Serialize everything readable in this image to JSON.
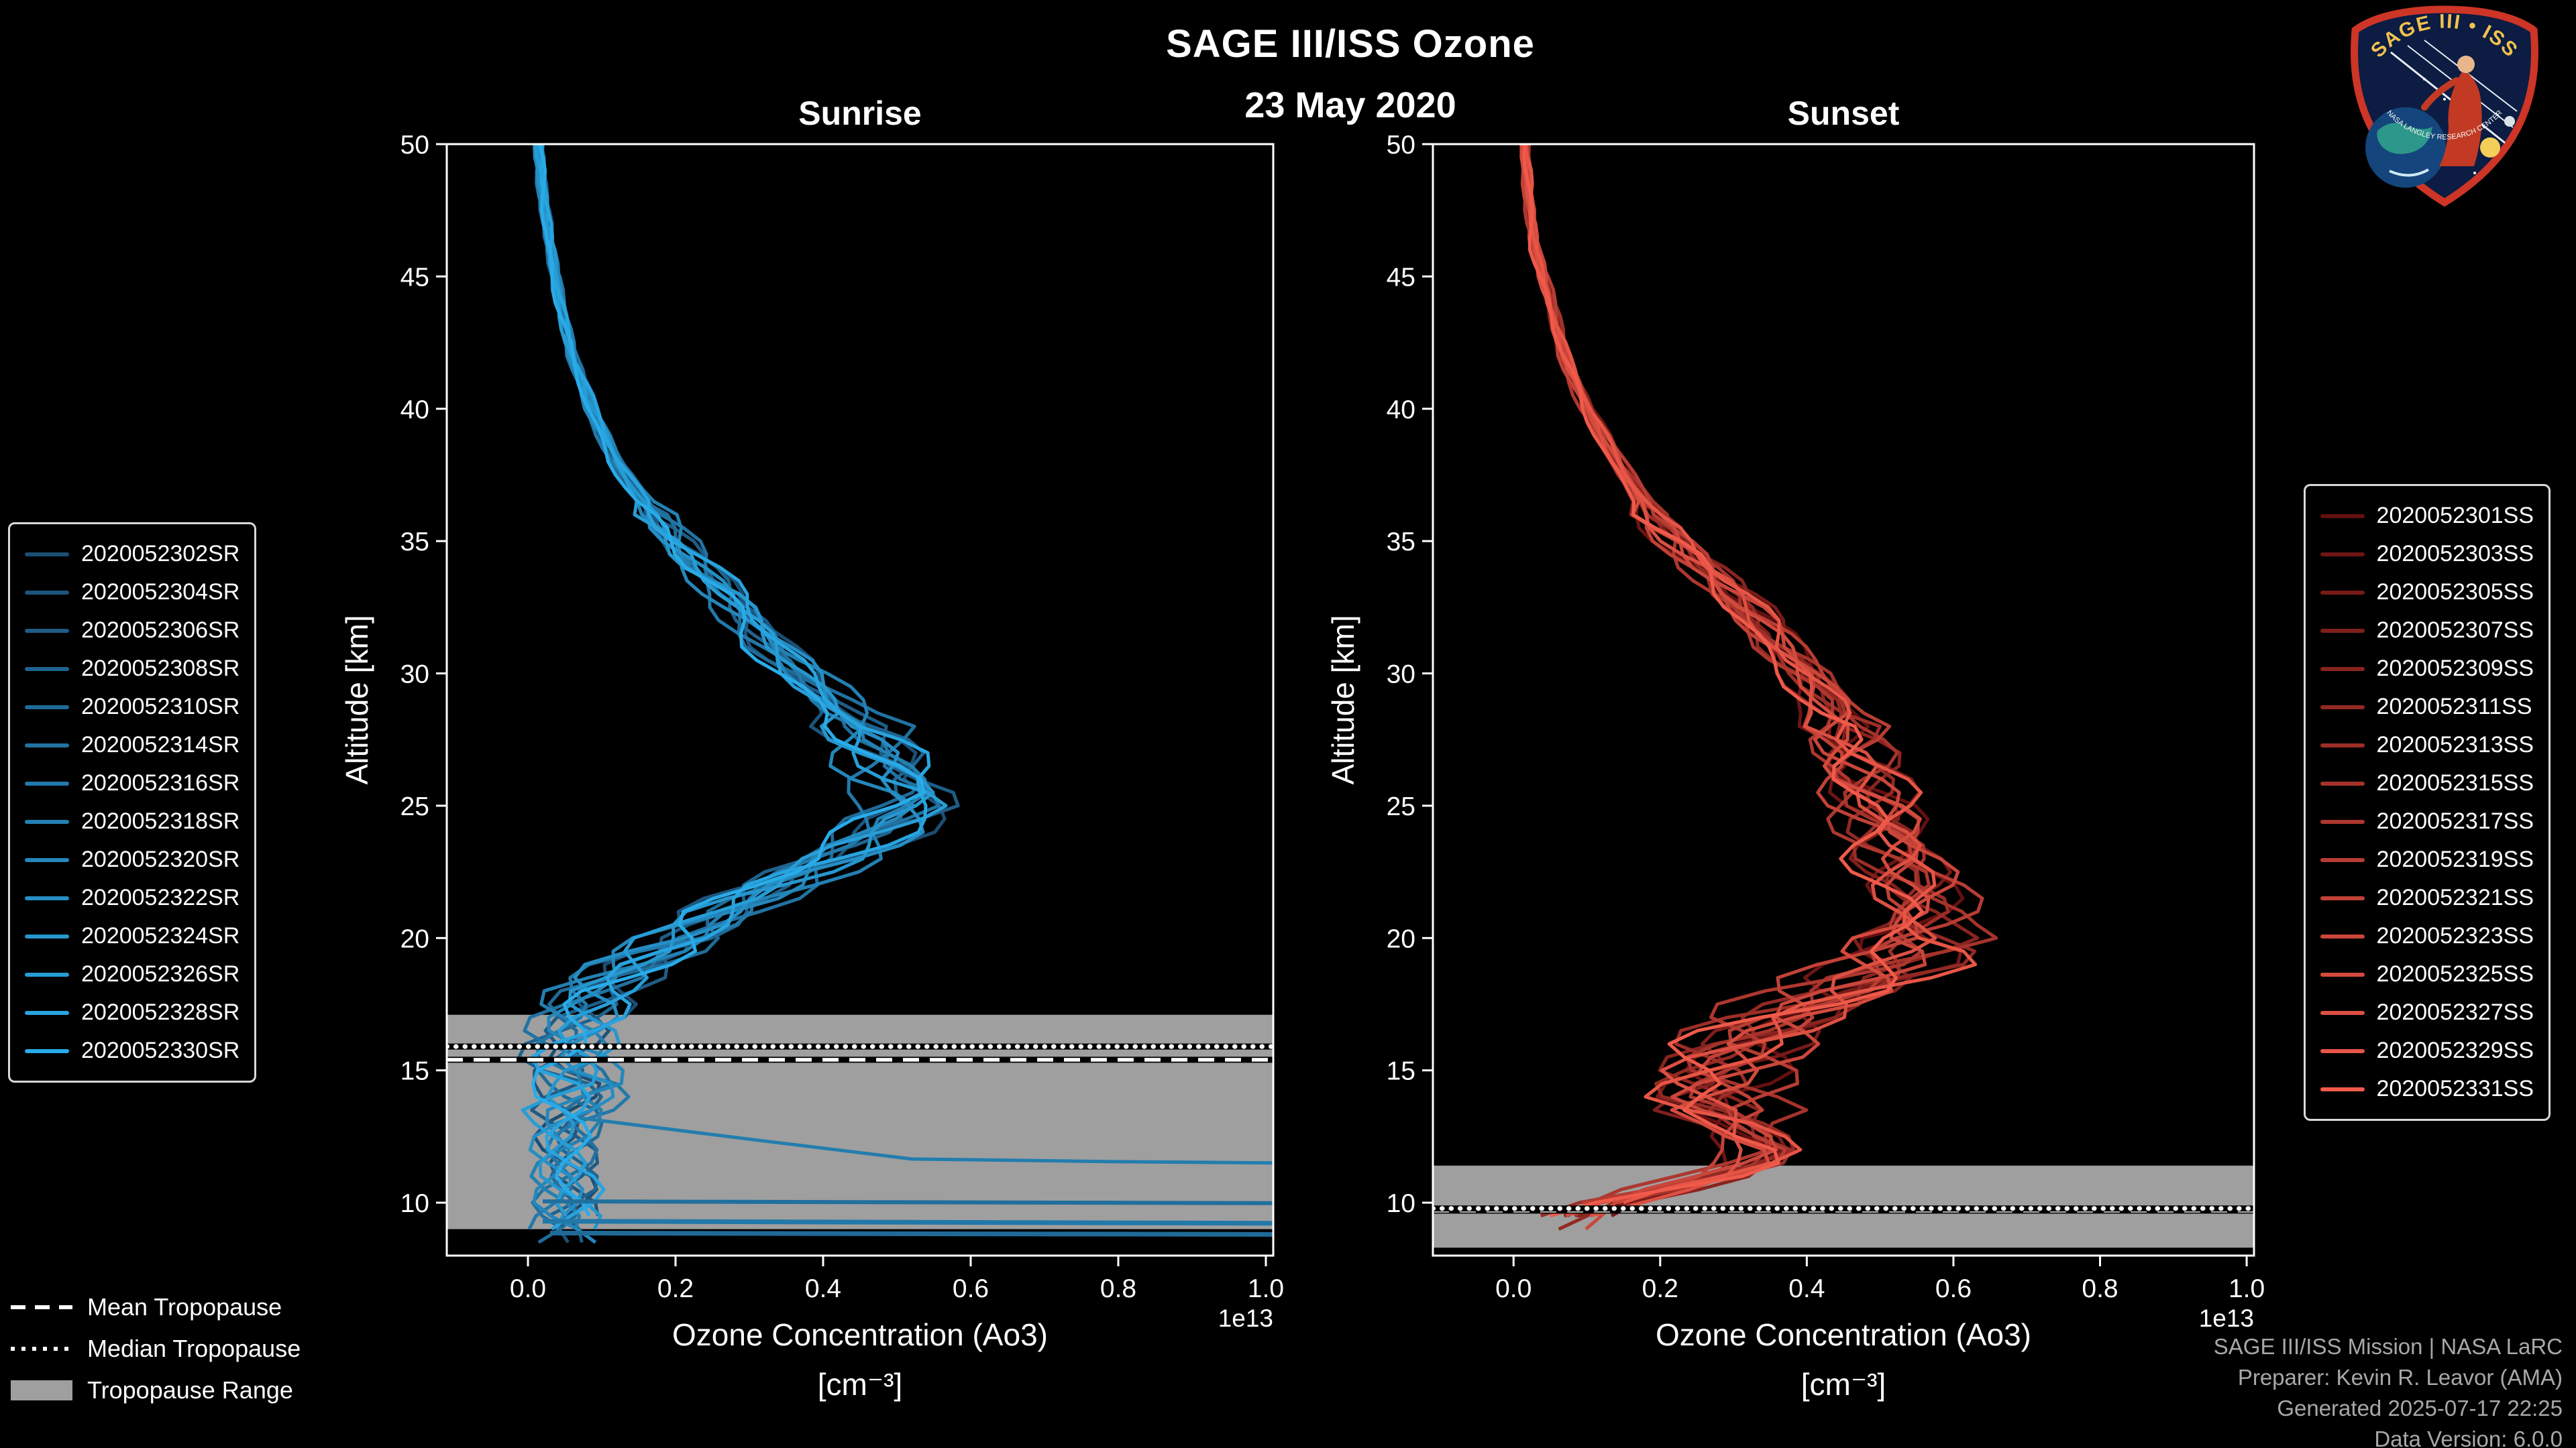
{
  "page": {
    "title": "SAGE III/ISS Ozone",
    "date": "23 May 2020",
    "background": "#000000"
  },
  "style": {
    "band_color": "#9f9f9f",
    "frame_color": "#ffffff",
    "tropopause_line_color": "#ffffff",
    "text_color": "#ffffff",
    "credits_color": "#a8a8a8"
  },
  "tropopause_legend": {
    "mean": "Mean Tropopause",
    "median": "Median Tropopause",
    "range": "Tropopause Range"
  },
  "credits": {
    "line1": "SAGE III/ISS Mission | NASA LaRC",
    "line2": "Preparer: Kevin R. Leavor (AMA)",
    "line3": "Generated 2025-07-17 22:25",
    "line4": "Data Version: 6.0.0"
  },
  "logo": {
    "title": "SAGE III • ISS",
    "ring_text": "NASA LANGLEY RESEARCH CENTER"
  },
  "chart_data": [
    {
      "type": "line",
      "id": "sunrise",
      "title": "Sunrise",
      "xlabel": "Ozone Concentration (Ao3)",
      "xlabel_units": "[cm⁻³]",
      "x_offset_label": "1e13",
      "ylabel": "Altitude [km]",
      "xlim": [
        -0.11,
        1.01
      ],
      "ylim": [
        8,
        50
      ],
      "x_ticks": [
        0.0,
        0.2,
        0.4,
        0.6,
        0.8,
        1.0
      ],
      "x_tick_labels": [
        "0.0",
        "0.2",
        "0.4",
        "0.6",
        "0.8",
        "1.0"
      ],
      "y_ticks": [
        10,
        15,
        20,
        25,
        30,
        35,
        40,
        45,
        50
      ],
      "y_tick_labels": [
        "10",
        "15",
        "20",
        "25",
        "30",
        "35",
        "40",
        "45",
        "50"
      ],
      "color_start": "#1c4e74",
      "color_end": "#29abe8",
      "line_width": 5,
      "jitter_low": 0.042,
      "min_alt_base": 8.35,
      "min_alt_spread": 1.1,
      "series_names": [
        "2020052302SR",
        "2020052304SR",
        "2020052306SR",
        "2020052308SR",
        "2020052310SR",
        "2020052314SR",
        "2020052316SR",
        "2020052318SR",
        "2020052320SR",
        "2020052322SR",
        "2020052324SR",
        "2020052326SR",
        "2020052328SR",
        "2020052330SR"
      ],
      "base_profile": {
        "altitude_km": [
          50,
          48,
          46,
          44,
          42,
          40,
          38,
          36,
          34,
          33,
          32,
          31,
          30,
          29,
          28,
          27,
          26,
          25.5,
          25,
          24,
          23,
          22,
          21,
          20,
          19,
          18,
          17,
          16,
          15,
          14.5,
          14,
          13,
          12,
          11,
          10,
          9,
          8.5
        ],
        "ozone_1e13_cm3": [
          0.015,
          0.02,
          0.03,
          0.045,
          0.06,
          0.085,
          0.12,
          0.17,
          0.23,
          0.27,
          0.3,
          0.33,
          0.37,
          0.41,
          0.45,
          0.48,
          0.5,
          0.52,
          0.52,
          0.47,
          0.41,
          0.34,
          0.27,
          0.21,
          0.14,
          0.085,
          0.065,
          0.055,
          0.06,
          0.08,
          0.07,
          0.055,
          0.05,
          0.05,
          0.05,
          0.05,
          0.05
        ]
      },
      "tropopause": {
        "mean_km": 15.4,
        "median_km": 15.9,
        "range_km": [
          9.0,
          17.1
        ]
      },
      "outlier_segments": [
        {
          "shade": 0.5,
          "width": 5,
          "points": [
            [
              0.07,
              13.2
            ],
            [
              0.3,
              12.4
            ],
            [
              0.52,
              11.65
            ],
            [
              0.8,
              11.55
            ],
            [
              1.02,
              11.5
            ]
          ]
        },
        {
          "shade": 0.35,
          "width": 6,
          "points": [
            [
              0.02,
              10.05
            ],
            [
              1.02,
              9.98
            ]
          ]
        },
        {
          "shade": 0.45,
          "width": 7,
          "points": [
            [
              0.02,
              9.3
            ],
            [
              1.02,
              9.22
            ]
          ]
        },
        {
          "shade": 0.3,
          "width": 7,
          "points": [
            [
              0.03,
              8.85
            ],
            [
              1.02,
              8.8
            ]
          ]
        }
      ]
    },
    {
      "type": "line",
      "id": "sunset",
      "title": "Sunset",
      "xlabel": "Ozone Concentration (Ao3)",
      "xlabel_units": "[cm⁻³]",
      "x_offset_label": "1e13",
      "ylabel": "Altitude [km]",
      "xlim": [
        -0.11,
        1.01
      ],
      "ylim": [
        8,
        50
      ],
      "x_ticks": [
        0.0,
        0.2,
        0.4,
        0.6,
        0.8,
        1.0
      ],
      "x_tick_labels": [
        "0.0",
        "0.2",
        "0.4",
        "0.6",
        "0.8",
        "1.0"
      ],
      "y_ticks": [
        10,
        15,
        20,
        25,
        30,
        35,
        40,
        45,
        50
      ],
      "y_tick_labels": [
        "10",
        "15",
        "20",
        "25",
        "30",
        "35",
        "40",
        "45",
        "50"
      ],
      "color_start": "#641010",
      "color_end": "#ef5a4a",
      "line_width": 5,
      "jitter_low": 0.06,
      "min_alt_base": 8.85,
      "min_alt_spread": 0.9,
      "series_names": [
        "2020052301SS",
        "2020052303SS",
        "2020052305SS",
        "2020052307SS",
        "2020052309SS",
        "2020052311SS",
        "2020052313SS",
        "2020052315SS",
        "2020052317SS",
        "2020052319SS",
        "2020052321SS",
        "2020052323SS",
        "2020052325SS",
        "2020052327SS",
        "2020052329SS",
        "2020052331SS"
      ],
      "base_profile": {
        "altitude_km": [
          50,
          48,
          46,
          44,
          42,
          40,
          38,
          36,
          34,
          32,
          31,
          30,
          29,
          28,
          27,
          26,
          25,
          24,
          23,
          22,
          21,
          20,
          19.5,
          19,
          18,
          17,
          16,
          15,
          14,
          13.5,
          13,
          12.5,
          12,
          11.5,
          11,
          10.5,
          10,
          9.5,
          9
        ],
        "ozone_1e13_cm3": [
          0.015,
          0.02,
          0.03,
          0.05,
          0.07,
          0.1,
          0.14,
          0.19,
          0.26,
          0.33,
          0.36,
          0.4,
          0.43,
          0.45,
          0.46,
          0.47,
          0.49,
          0.51,
          0.53,
          0.55,
          0.56,
          0.55,
          0.54,
          0.52,
          0.44,
          0.36,
          0.31,
          0.28,
          0.27,
          0.29,
          0.31,
          0.33,
          0.35,
          0.33,
          0.28,
          0.2,
          0.13,
          0.08,
          0.05
        ]
      },
      "tropopause": {
        "mean_km": 9.7,
        "median_km": 9.78,
        "range_km": [
          8.3,
          11.4
        ]
      },
      "outlier_segments": []
    }
  ]
}
